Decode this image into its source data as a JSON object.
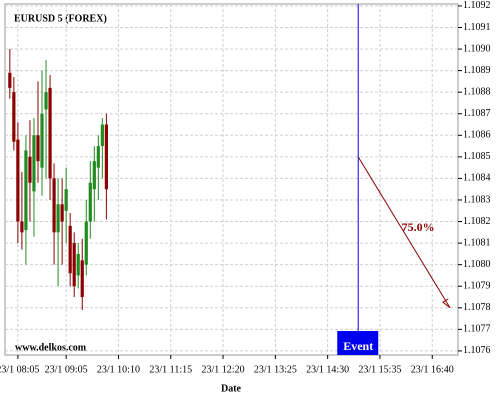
{
  "chart_data": {
    "type": "candlestick",
    "title": "EURUSD 5 (FOREX)",
    "x_label": "Date",
    "watermark": "www.delkos.com",
    "up_color": "#228b22",
    "down_color": "#8b0000",
    "grid": true,
    "x": [
      "23/1 07:55",
      "23/1 08:00",
      "23/1 08:05",
      "23/1 08:10",
      "23/1 08:15",
      "23/1 08:20",
      "23/1 08:25",
      "23/1 08:30",
      "23/1 08:35",
      "23/1 08:40",
      "23/1 08:45",
      "23/1 08:50",
      "23/1 08:55",
      "23/1 09:00",
      "23/1 09:05",
      "23/1 09:10",
      "23/1 09:15",
      "23/1 09:20",
      "23/1 09:25",
      "23/1 09:30",
      "23/1 09:35",
      "23/1 09:40",
      "23/1 09:45",
      "23/1 09:50",
      "23/1 09:55"
    ],
    "open": [
      1.10889,
      1.1088,
      1.10858,
      1.1082,
      1.10816,
      1.1085,
      1.10834,
      1.1086,
      1.10845,
      1.10872,
      1.10882,
      1.1084,
      1.10815,
      1.10828,
      1.10825,
      1.10818,
      1.1081,
      1.10795,
      1.10802,
      1.108,
      1.1082,
      1.10835,
      1.10845,
      1.10855,
      1.10865
    ],
    "high": [
      1.109,
      1.10887,
      1.10866,
      1.10843,
      1.1086,
      1.10867,
      1.10868,
      1.10885,
      1.1089,
      1.10895,
      1.10888,
      1.10847,
      1.1084,
      1.1084,
      1.10845,
      1.10824,
      1.10815,
      1.1081,
      1.10812,
      1.1083,
      1.10848,
      1.10855,
      1.1086,
      1.10868,
      1.1087
    ],
    "low": [
      1.10877,
      1.10853,
      1.1081,
      1.10807,
      1.108,
      1.1082,
      1.10813,
      1.10838,
      1.10832,
      1.1084,
      1.1083,
      1.108,
      1.1079,
      1.108,
      1.1081,
      1.1079,
      1.10785,
      1.10789,
      1.10779,
      1.10795,
      1.10812,
      1.1082,
      1.1083,
      1.1084,
      1.10821
    ],
    "close": [
      1.10882,
      1.10857,
      1.1082,
      1.10815,
      1.10853,
      1.10838,
      1.1086,
      1.10848,
      1.1087,
      1.1088,
      1.1084,
      1.10815,
      1.10828,
      1.1082,
      1.10835,
      1.10796,
      1.1079,
      1.10805,
      1.10785,
      1.1082,
      1.10838,
      1.10848,
      1.10855,
      1.10865,
      1.10835
    ],
    "xlim": [
      "23/1 07:49",
      "23/1 17:12"
    ],
    "xticks": [
      "23/1 08:05",
      "23/1 09:05",
      "23/1 10:10",
      "23/1 11:15",
      "23/1 12:20",
      "23/1 13:25",
      "23/1 14:30",
      "23/1 15:35",
      "23/1 16:40"
    ],
    "ylim": [
      1.107581,
      1.109209
    ],
    "yticks": [
      1.1076,
      1.1077,
      1.1078,
      1.1079,
      {
        "value": 1.108,
        "label": "1.1080"
      },
      1.1081,
      1.1082,
      1.1083,
      1.1084,
      1.1085,
      1.1086,
      1.1087,
      1.1088,
      1.1089,
      {
        "value": 1.109,
        "label": "1.1090"
      },
      1.1091,
      1.1092
    ],
    "event": {
      "x": "23/1 15:08",
      "label": "Event",
      "color": "#0000ee"
    },
    "forecast": {
      "x0": "23/1 15:08",
      "y0": 1.1085,
      "x1": "23/1 17:02",
      "y1": 1.1078,
      "label": "75.0%",
      "color": "#8b0000"
    }
  }
}
